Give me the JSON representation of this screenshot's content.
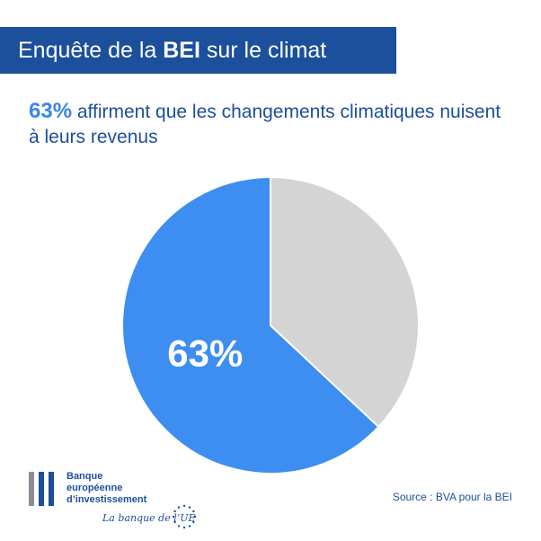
{
  "header": {
    "title_pre": "Enquête de la ",
    "title_bold": "BEI",
    "title_post": " sur le climat"
  },
  "subtitle": {
    "highlight": "63%",
    "text": " affirment que les changements climatiques nuisent à leurs revenus"
  },
  "colors": {
    "banner": "#1c4f9c",
    "primary_slice": "#3d8ef0",
    "other_slice": "#d4d4d4",
    "text_blue": "#1c4f9c"
  },
  "chart_data": {
    "type": "pie",
    "slices": [
      {
        "value": 63,
        "label": "63%",
        "color": "#3d8ef0"
      },
      {
        "value": 37,
        "label": "",
        "color": "#d4d4d4"
      }
    ]
  },
  "logo": {
    "line1": "Banque",
    "line2": "européenne",
    "line3": "d’investissement",
    "tagline": "La banque de l’UE"
  },
  "footer": {
    "source": "Source : BVA pour la BEI"
  }
}
